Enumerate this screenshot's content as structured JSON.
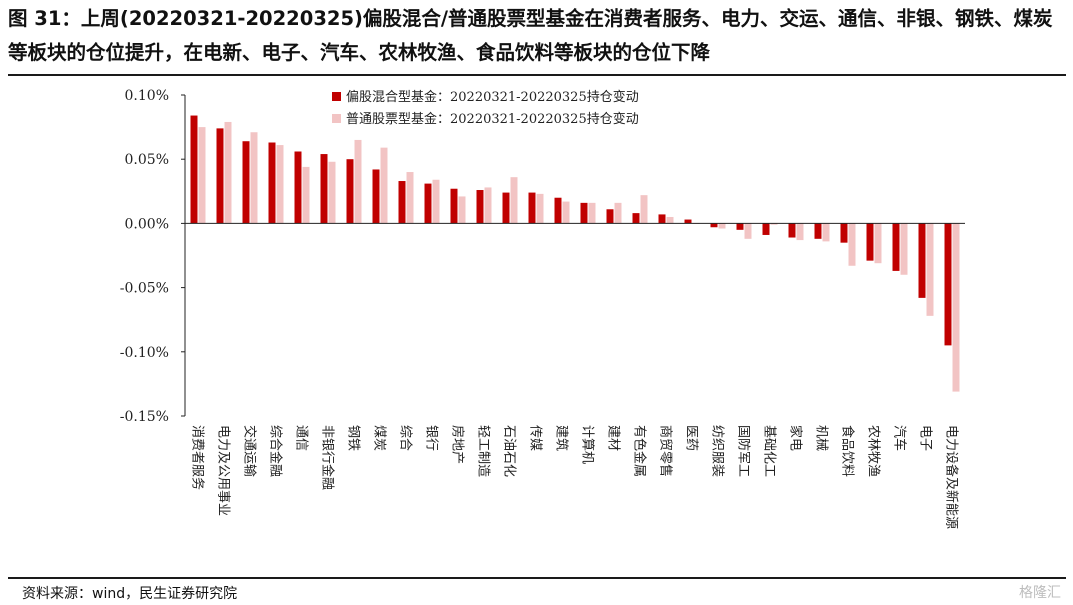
{
  "header": {
    "title": "图 31：上周(20220321-20220325)偏股混合/普通股票型基金在消费者服务、电力、交运、通信、非银、钢铁、煤炭等板块的仓位提升，在电新、电子、汽车、农林牧渔、食品饮料等板块的仓位下降"
  },
  "footer": {
    "source": "资料来源：wind，民生证券研究院",
    "watermark": "格隆汇"
  },
  "chart_data": {
    "type": "bar",
    "ylim": [
      -0.15,
      0.1
    ],
    "yticks": [
      0.1,
      0.05,
      0.0,
      -0.05,
      -0.1,
      -0.15
    ],
    "ytick_labels": [
      "0.10%",
      "0.05%",
      "0.00%",
      "-0.05%",
      "-0.10%",
      "-0.15%"
    ],
    "legend_position": "top-center",
    "grid": false,
    "categories": [
      "消费者服务",
      "电力及公用事业",
      "交通运输",
      "综合金融",
      "通信",
      "非银行金融",
      "钢铁",
      "煤炭",
      "综合",
      "银行",
      "房地产",
      "轻工制造",
      "石油石化",
      "传媒",
      "建筑",
      "计算机",
      "建材",
      "有色金属",
      "商贸零售",
      "医药",
      "纺织服装",
      "国防军工",
      "基础化工",
      "家电",
      "机械",
      "食品饮料",
      "农林牧渔",
      "汽车",
      "电子",
      "电力设备及新能源"
    ],
    "series": [
      {
        "name": "偏股混合型基金：20220321-20220325持仓变动",
        "color": "#c00000",
        "values": [
          0.084,
          0.074,
          0.064,
          0.063,
          0.056,
          0.054,
          0.05,
          0.042,
          0.033,
          0.031,
          0.027,
          0.026,
          0.024,
          0.024,
          0.02,
          0.016,
          0.011,
          0.008,
          0.007,
          0.003,
          -0.003,
          -0.005,
          -0.009,
          -0.011,
          -0.012,
          -0.015,
          -0.029,
          -0.037,
          -0.058,
          -0.095
        ]
      },
      {
        "name": "普通股票型基金：20220321-20220325持仓变动",
        "color": "#f2c4c4",
        "values": [
          0.075,
          0.079,
          0.071,
          0.061,
          0.044,
          0.048,
          0.065,
          0.059,
          0.04,
          0.034,
          0.021,
          0.028,
          0.036,
          0.023,
          0.017,
          0.016,
          0.016,
          0.022,
          0.005,
          0.0,
          -0.004,
          -0.012,
          -0.001,
          -0.013,
          -0.014,
          -0.033,
          -0.031,
          -0.04,
          -0.072,
          -0.131
        ]
      }
    ]
  }
}
